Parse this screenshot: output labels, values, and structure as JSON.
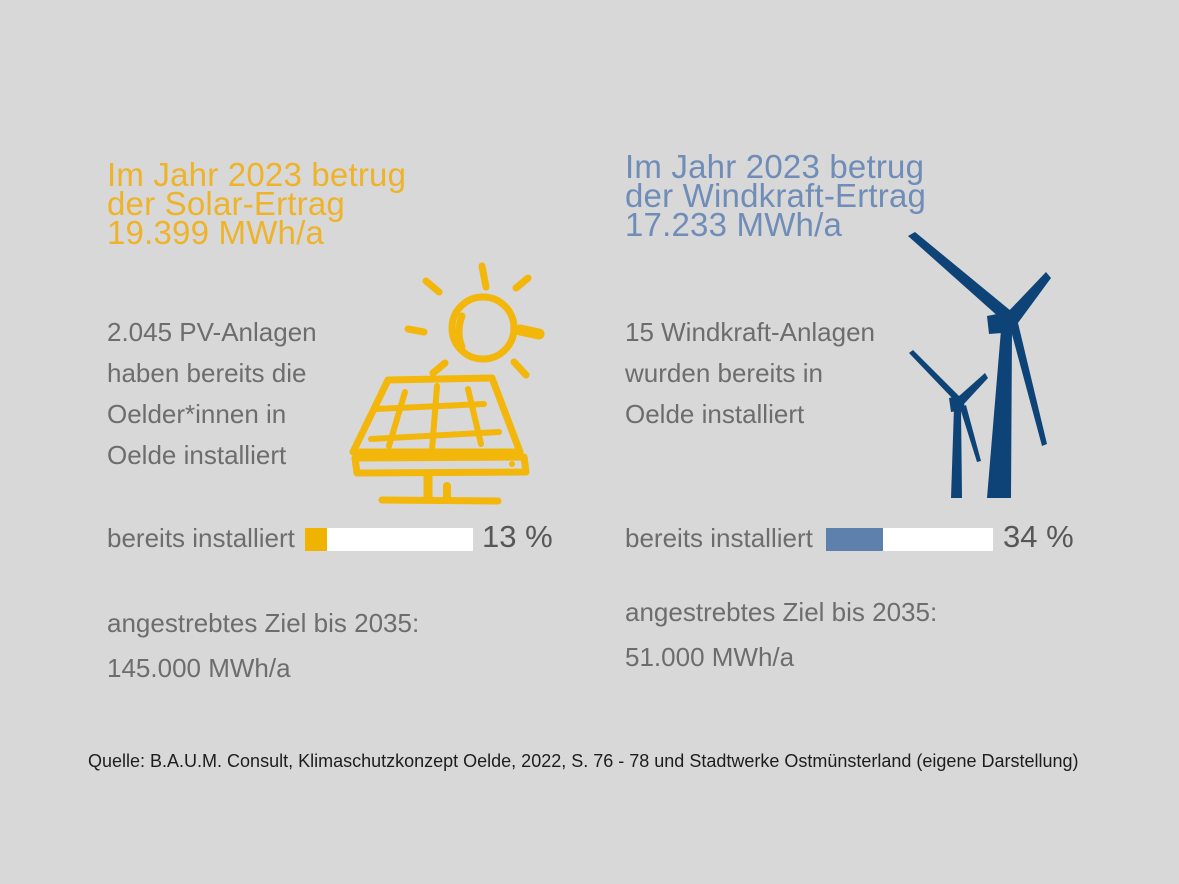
{
  "page": {
    "background_color": "#d8d8d8",
    "source_note": "Quelle: B.A.U.M. Consult, Klimaschutzkonzept Oelde, 2022, S. 76 - 78 und Stadtwerke Ostmünsterland (eigene Darstellung)"
  },
  "text_colors": {
    "body": "#6d6d6d",
    "percent": "#575757",
    "source": "#1d1d1d"
  },
  "solar": {
    "title_lines": [
      "Im Jahr 2023 betrug",
      "der Solar-Ertrag",
      "19.399 MWh/a"
    ],
    "body_lines": [
      "2.045 PV-Anlagen",
      "haben bereits die",
      "Oelder*innen in",
      "Oelde installiert"
    ],
    "progress_label": "bereits installiert",
    "progress_percent": 13,
    "progress_value_label": "13 %",
    "target_lines": [
      "angestrebtes Ziel bis 2035:",
      "145.000 MWh/a"
    ],
    "colors": {
      "title": "#eeb329",
      "bar_fill": "#f0b400",
      "bar_track": "#ffffff",
      "icon": "#f3b60a"
    }
  },
  "wind": {
    "title_lines": [
      "Im Jahr 2023 betrug",
      "der Windkraft-Ertrag",
      "17.233 MWh/a"
    ],
    "body_lines": [
      "15 Windkraft-Anlagen",
      "wurden bereits in",
      "Oelde installiert"
    ],
    "progress_label": "bereits installiert",
    "progress_percent": 34,
    "progress_value_label": "34 %",
    "target_lines": [
      "angestrebtes Ziel bis 2035:",
      "51.000 MWh/a"
    ],
    "colors": {
      "title": "#6f8db8",
      "bar_fill": "#5d81ac",
      "bar_track": "#ffffff",
      "icon": "#0e4377"
    }
  },
  "chart_data": {
    "type": "bar",
    "title": "",
    "categories": [
      "Solar",
      "Windkraft"
    ],
    "series": [
      {
        "name": "bereits installiert (% des Ziels 2035)",
        "values": [
          13,
          34
        ]
      }
    ],
    "xlim": [
      0,
      100
    ],
    "annotations": {
      "solar_ertrag_2023_mwh_a": 19399,
      "wind_ertrag_2023_mwh_a": 17233,
      "pv_anlagen_anzahl": 2045,
      "windkraft_anlagen_anzahl": 15,
      "solar_ziel_2035_mwh_a": 145000,
      "wind_ziel_2035_mwh_a": 51000
    },
    "legend_position": "none",
    "grid": false
  }
}
